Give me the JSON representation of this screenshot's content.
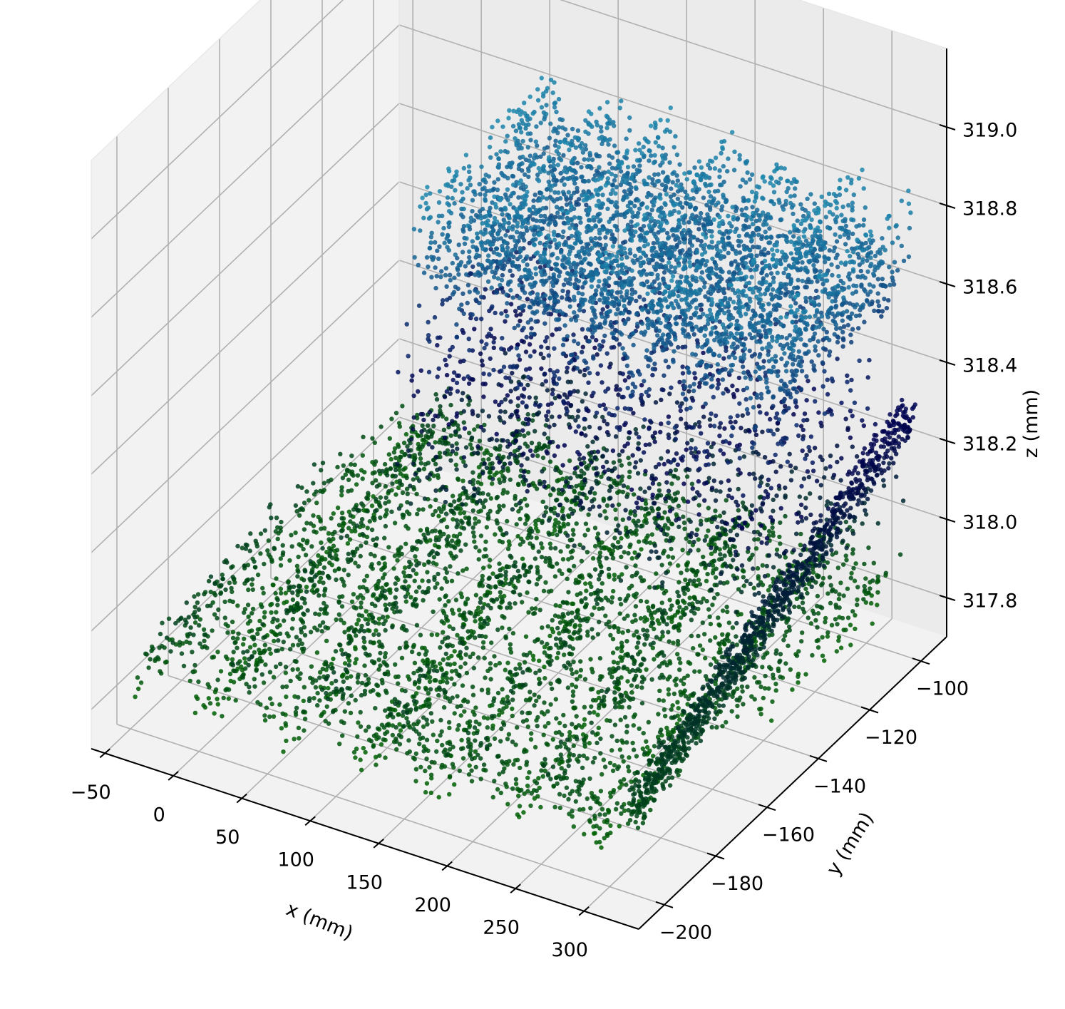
{
  "chart_data": {
    "type": "scatter",
    "title": "",
    "xlabel": "x (mm)",
    "ylabel": "y (mm)",
    "zlabel": "z (mm)",
    "xlim": [
      -60,
      340
    ],
    "ylim": [
      -210,
      -90
    ],
    "zlim": [
      317.7,
      319.2
    ],
    "x_ticks": [
      -50,
      0,
      50,
      100,
      150,
      200,
      250,
      300
    ],
    "x_tick_labels": [
      "−50",
      "0",
      "50",
      "100",
      "150",
      "200",
      "250",
      "300"
    ],
    "y_ticks": [
      -200,
      -180,
      -160,
      -140,
      -120,
      -100
    ],
    "y_tick_labels": [
      "−200",
      "−180",
      "−160",
      "−140",
      "−120",
      "−100"
    ],
    "z_ticks": [
      317.8,
      318.0,
      318.2,
      318.4,
      318.6,
      318.8,
      319.0
    ],
    "z_tick_labels": [
      "317.8",
      "318.0",
      "318.2",
      "318.4",
      "318.6",
      "318.8",
      "319.0"
    ],
    "grid": true,
    "colormap": {
      "low": "#006400",
      "mid": "#00004f",
      "high": "#1e8fb2"
    },
    "series": [
      {
        "region": "lower",
        "x_range": [
          -40,
          320
        ],
        "y_range": [
          -205,
          -96
        ],
        "z_approx": 317.9,
        "color": "#0b5a1c"
      },
      {
        "region": "upper",
        "x_range": [
          60,
          330
        ],
        "y_range": [
          -150,
          -96
        ],
        "z_approx": 318.7,
        "color": "#1a6a99"
      }
    ]
  }
}
